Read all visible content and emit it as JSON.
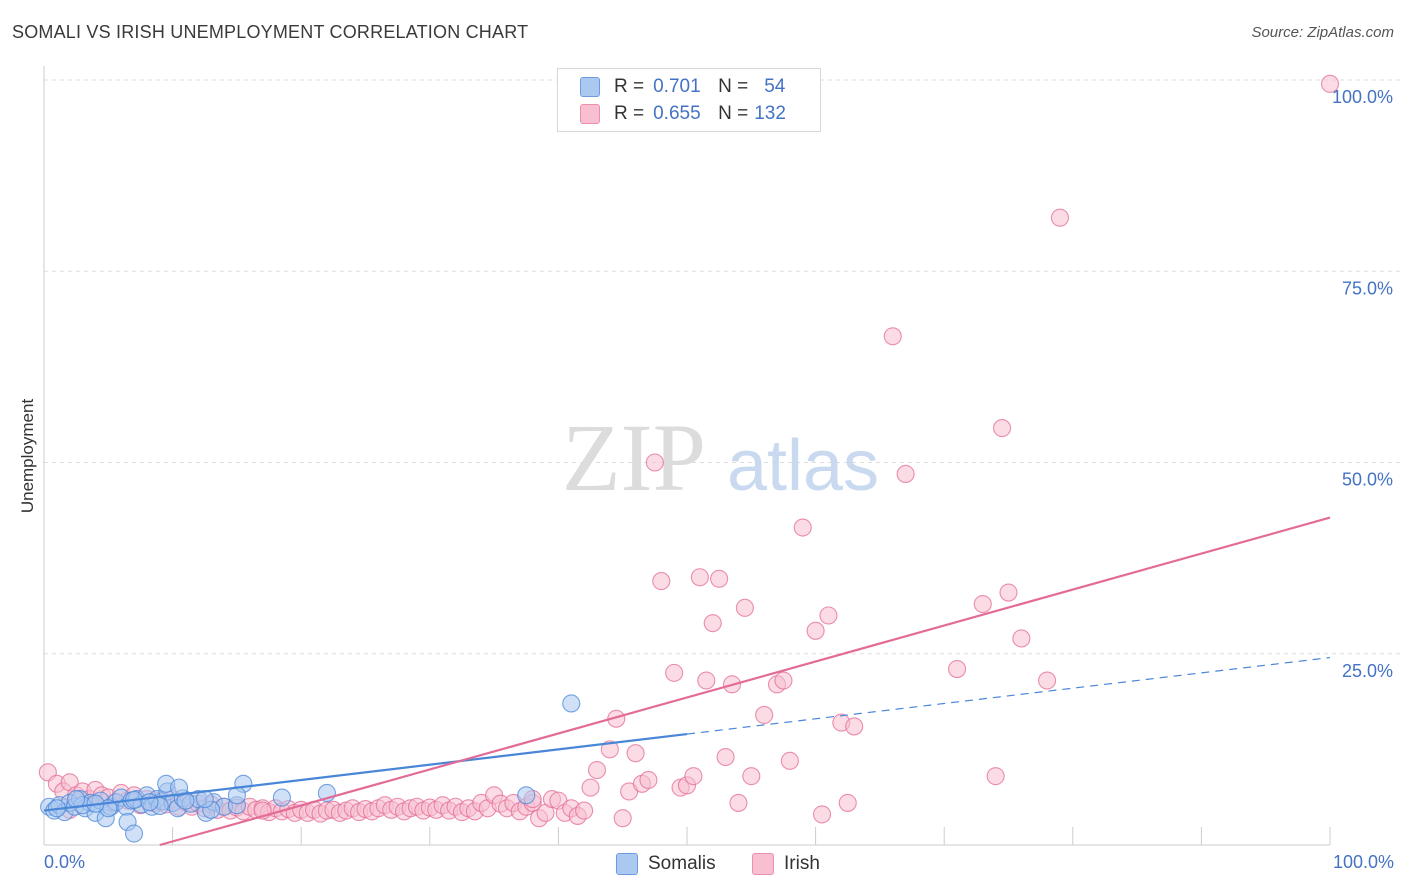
{
  "title": "SOMALI VS IRISH UNEMPLOYMENT CORRELATION CHART",
  "source": "Source: ZipAtlas.com",
  "watermark": {
    "zip": "ZIP",
    "atlas": "atlas"
  },
  "legend": {
    "r_label": "R =",
    "n_label": "N =",
    "entries": [
      {
        "name": "Somalis",
        "r": "0.701",
        "n": "54",
        "fill": "#aac8f0",
        "stroke": "#6d9de0"
      },
      {
        "name": "Irish",
        "r": "0.655",
        "n": "132",
        "fill": "#f7bfd0",
        "stroke": "#ec8fac"
      }
    ]
  },
  "chart_data": {
    "type": "scatter",
    "title": "SOMALI VS IRISH UNEMPLOYMENT CORRELATION CHART",
    "xlabel": "",
    "ylabel": "Unemployment",
    "xlim": [
      0,
      100
    ],
    "ylim": [
      0,
      100
    ],
    "x_tick_labels": [
      "0.0%",
      "100.0%"
    ],
    "y_tick_labels": [
      {
        "value": 25,
        "label": "25.0%"
      },
      {
        "value": 50,
        "label": "50.0%"
      },
      {
        "value": 75,
        "label": "75.0%"
      },
      {
        "value": 100,
        "label": "100.0%"
      }
    ],
    "gridlines_y": [
      25,
      50,
      75,
      100
    ],
    "series": [
      {
        "name": "Somalis",
        "color": "#4a86d8",
        "fill": "#aac8f0",
        "trend": {
          "x0": 0,
          "y0": 4.5,
          "x1": 50,
          "y1": 14.5,
          "dash_to_x": 100,
          "dash_to_y": 24.5
        },
        "points": [
          [
            0.4,
            5
          ],
          [
            0.8,
            4.5
          ],
          [
            1.2,
            5.2
          ],
          [
            1.6,
            4.3
          ],
          [
            2,
            5.5
          ],
          [
            2.4,
            5
          ],
          [
            2.8,
            6
          ],
          [
            3.2,
            4.8
          ],
          [
            3.6,
            5.5
          ],
          [
            4,
            4.2
          ],
          [
            4.4,
            5.8
          ],
          [
            4.8,
            3.5
          ],
          [
            5.2,
            5
          ],
          [
            5.6,
            5.6
          ],
          [
            6,
            6.2
          ],
          [
            6.4,
            5
          ],
          [
            6.8,
            5.8
          ],
          [
            7.2,
            6
          ],
          [
            7.6,
            5.3
          ],
          [
            8,
            6.5
          ],
          [
            8.4,
            5
          ],
          [
            8.8,
            6
          ],
          [
            9.2,
            5.7
          ],
          [
            9.6,
            7
          ],
          [
            10,
            5.5
          ],
          [
            10.4,
            4.8
          ],
          [
            10.8,
            6.1
          ],
          [
            11.4,
            5.4
          ],
          [
            12,
            6
          ],
          [
            12.6,
            4.2
          ],
          [
            13.2,
            5.6
          ],
          [
            14,
            5
          ],
          [
            1,
            4.8
          ],
          [
            3,
            5.2
          ],
          [
            5,
            4.8
          ],
          [
            7,
            5.9
          ],
          [
            9,
            5.1
          ],
          [
            11,
            5.8
          ],
          [
            13,
            4.6
          ],
          [
            15,
            5.2
          ],
          [
            6.5,
            3
          ],
          [
            7,
            1.5
          ],
          [
            9.5,
            8
          ],
          [
            12.5,
            6
          ],
          [
            15.5,
            8
          ],
          [
            18.5,
            6.2
          ],
          [
            22,
            6.8
          ],
          [
            37.5,
            6.5
          ],
          [
            41,
            18.5
          ],
          [
            2.5,
            6
          ],
          [
            4,
            5.4
          ],
          [
            8.2,
            5.6
          ],
          [
            10.5,
            7.5
          ],
          [
            15,
            6.5
          ]
        ]
      },
      {
        "name": "Irish",
        "color": "#e36b97",
        "fill": "#f7bfd0",
        "trend": {
          "x0": 9,
          "y0": 0,
          "x1": 100,
          "y1": 42.8
        },
        "points": [
          [
            0.3,
            9.5
          ],
          [
            1,
            8
          ],
          [
            1.5,
            7
          ],
          [
            2,
            8.2
          ],
          [
            2.5,
            6.5
          ],
          [
            3,
            7
          ],
          [
            3.5,
            6
          ],
          [
            4,
            7.2
          ],
          [
            4.5,
            6.5
          ],
          [
            5,
            6.2
          ],
          [
            5.5,
            5.5
          ],
          [
            6,
            6.8
          ],
          [
            6.5,
            5.8
          ],
          [
            7,
            6.5
          ],
          [
            7.5,
            5.2
          ],
          [
            8,
            6
          ],
          [
            8.5,
            5.5
          ],
          [
            9,
            5.8
          ],
          [
            9.5,
            5.3
          ],
          [
            10,
            6
          ],
          [
            10.5,
            5
          ],
          [
            11,
            5.6
          ],
          [
            11.5,
            5
          ],
          [
            12,
            5.4
          ],
          [
            12.5,
            4.8
          ],
          [
            13,
            5.3
          ],
          [
            13.5,
            4.6
          ],
          [
            14,
            5
          ],
          [
            14.5,
            4.5
          ],
          [
            15,
            4.9
          ],
          [
            15.5,
            4.4
          ],
          [
            16,
            5
          ],
          [
            16.5,
            4.6
          ],
          [
            17,
            4.8
          ],
          [
            17.5,
            4.3
          ],
          [
            18,
            4.8
          ],
          [
            18.5,
            4.4
          ],
          [
            19,
            4.7
          ],
          [
            19.5,
            4.2
          ],
          [
            20,
            4.6
          ],
          [
            20.5,
            4.2
          ],
          [
            21,
            4.6
          ],
          [
            21.5,
            4.1
          ],
          [
            22,
            4.5
          ],
          [
            22.5,
            4.6
          ],
          [
            23,
            4.2
          ],
          [
            23.5,
            4.5
          ],
          [
            24,
            4.8
          ],
          [
            24.5,
            4.3
          ],
          [
            25,
            4.7
          ],
          [
            25.5,
            4.4
          ],
          [
            26,
            4.8
          ],
          [
            26.5,
            5.2
          ],
          [
            27,
            4.6
          ],
          [
            27.5,
            5
          ],
          [
            28,
            4.4
          ],
          [
            28.5,
            4.8
          ],
          [
            29,
            5
          ],
          [
            29.5,
            4.5
          ],
          [
            30,
            4.9
          ],
          [
            30.5,
            4.6
          ],
          [
            31,
            5.2
          ],
          [
            31.5,
            4.5
          ],
          [
            32,
            5
          ],
          [
            32.5,
            4.3
          ],
          [
            33,
            4.8
          ],
          [
            33.5,
            4.4
          ],
          [
            34,
            5.5
          ],
          [
            34.5,
            4.8
          ],
          [
            35,
            6.5
          ],
          [
            35.5,
            5.4
          ],
          [
            36,
            4.8
          ],
          [
            36.5,
            5.5
          ],
          [
            37,
            4.4
          ],
          [
            37.5,
            5
          ],
          [
            38,
            5.5
          ],
          [
            38.5,
            3.5
          ],
          [
            39,
            4.2
          ],
          [
            39.5,
            6
          ],
          [
            40,
            5.8
          ],
          [
            40.5,
            4.2
          ],
          [
            41,
            4.8
          ],
          [
            41.5,
            3.8
          ],
          [
            42,
            4.5
          ],
          [
            42.5,
            7.5
          ],
          [
            43,
            9.8
          ],
          [
            44,
            12.5
          ],
          [
            44.5,
            16.5
          ],
          [
            45,
            3.5
          ],
          [
            45.5,
            7
          ],
          [
            46,
            12
          ],
          [
            46.5,
            8
          ],
          [
            47,
            8.5
          ],
          [
            47.5,
            50
          ],
          [
            48,
            34.5
          ],
          [
            49,
            22.5
          ],
          [
            49.5,
            7.5
          ],
          [
            50,
            7.8
          ],
          [
            50.5,
            9
          ],
          [
            51,
            35
          ],
          [
            51.5,
            21.5
          ],
          [
            52,
            29
          ],
          [
            52.5,
            34.8
          ],
          [
            53,
            11.5
          ],
          [
            53.5,
            21
          ],
          [
            54,
            5.5
          ],
          [
            54.5,
            31
          ],
          [
            55,
            9
          ],
          [
            56,
            17
          ],
          [
            57,
            21
          ],
          [
            57.5,
            21.5
          ],
          [
            58,
            11
          ],
          [
            59,
            41.5
          ],
          [
            60,
            28
          ],
          [
            60.5,
            4
          ],
          [
            61,
            30
          ],
          [
            62,
            16
          ],
          [
            62.5,
            5.5
          ],
          [
            63,
            15.5
          ],
          [
            66,
            66.5
          ],
          [
            67,
            48.5
          ],
          [
            71,
            23
          ],
          [
            73,
            31.5
          ],
          [
            74,
            9
          ],
          [
            74.5,
            54.5
          ],
          [
            75,
            33
          ],
          [
            76,
            27
          ],
          [
            78,
            21.5
          ],
          [
            79,
            82
          ],
          [
            100,
            99.5
          ],
          [
            17,
            4.5
          ],
          [
            2,
            4.6
          ],
          [
            38,
            6
          ]
        ]
      }
    ]
  }
}
